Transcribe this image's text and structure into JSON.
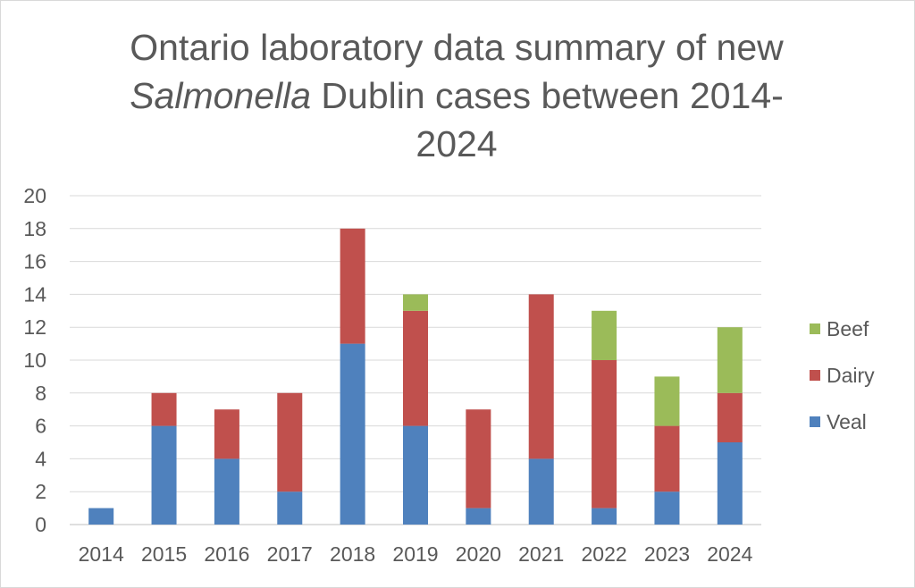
{
  "chart_data": {
    "type": "bar",
    "stacked": true,
    "title_line1": "Ontario laboratory data summary of new",
    "title_line2_italic": "Salmonella",
    "title_line2_rest": " Dublin cases between 2014-",
    "title_line3": "2024",
    "categories": [
      "2014",
      "2015",
      "2016",
      "2017",
      "2018",
      "2019",
      "2020",
      "2021",
      "2022",
      "2023",
      "2024"
    ],
    "series": [
      {
        "name": "Veal",
        "color": "#4f81bd",
        "values": [
          1,
          6,
          4,
          2,
          11,
          6,
          1,
          4,
          1,
          2,
          5
        ]
      },
      {
        "name": "Dairy",
        "color": "#c0504d",
        "values": [
          0,
          2,
          3,
          6,
          7,
          7,
          6,
          10,
          9,
          4,
          3
        ]
      },
      {
        "name": "Beef",
        "color": "#9bbb59",
        "values": [
          0,
          0,
          0,
          0,
          0,
          1,
          0,
          0,
          3,
          3,
          4
        ]
      }
    ],
    "ylim": [
      0,
      20
    ],
    "yticks": [
      "0",
      "2",
      "4",
      "6",
      "8",
      "10",
      "12",
      "14",
      "16",
      "18",
      "20"
    ],
    "grid": true,
    "legend_position": "right",
    "legend_order": [
      "Beef",
      "Dairy",
      "Veal"
    ]
  }
}
